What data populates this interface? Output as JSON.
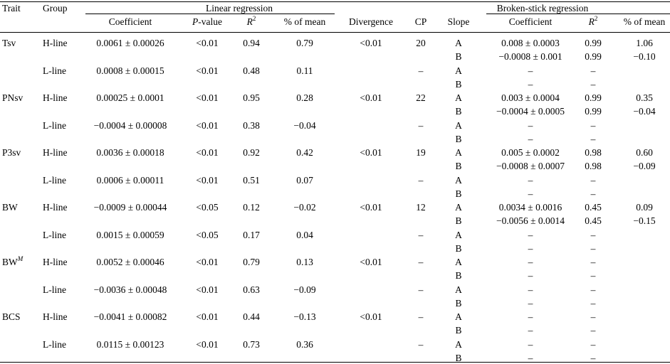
{
  "headers": {
    "trait": "Trait",
    "group": "Group",
    "linear_regression": "Linear regression",
    "broken_stick_regression": "Broken-stick regression",
    "coefficient": "Coefficient",
    "p_value_italic": "P",
    "p_value_rest": "-value",
    "r_letter": "R",
    "r_exp": "2",
    "pct_of_mean": "% of mean",
    "divergence": "Divergence",
    "cp": "CP",
    "slope": "Slope",
    "bs_coefficient": "Coefficient",
    "bs_r_letter": "R",
    "bs_r_exp": "2",
    "bs_pct_of_mean": "% of mean"
  },
  "rows": [
    {
      "trait": "Tsv",
      "group": "H-line",
      "coef": "0.0061 ± 0.00026",
      "p": "<0.01",
      "r2": "0.94",
      "pct": "0.79",
      "div": "<0.01",
      "cp": "20",
      "slopes": [
        {
          "s": "A",
          "coef": "0.008 ± 0.0003",
          "r2": "0.99",
          "pct": "1.06"
        },
        {
          "s": "B",
          "coef": "−0.0008 ± 0.001",
          "r2": "0.99",
          "pct": "−0.10"
        }
      ]
    },
    {
      "trait": "",
      "group": "L-line",
      "coef": "0.0008 ± 0.00015",
      "p": "<0.01",
      "r2": "0.48",
      "pct": "0.11",
      "div": "",
      "cp": "–",
      "slopes": [
        {
          "s": "A",
          "coef": "–",
          "r2": "–",
          "pct": ""
        },
        {
          "s": "B",
          "coef": "–",
          "r2": "–",
          "pct": ""
        }
      ]
    },
    {
      "trait": "PNsv",
      "group": "H-line",
      "coef": "0.00025 ± 0.0001",
      "p": "<0.01",
      "r2": "0.95",
      "pct": "0.28",
      "div": "<0.01",
      "cp": "22",
      "slopes": [
        {
          "s": "A",
          "coef": "0.003 ± 0.0004",
          "r2": "0.99",
          "pct": "0.35"
        },
        {
          "s": "B",
          "coef": "−0.0004 ± 0.0005",
          "r2": "0.99",
          "pct": "−0.04"
        }
      ]
    },
    {
      "trait": "",
      "group": "L-line",
      "coef": "−0.0004 ± 0.00008",
      "p": "<0.01",
      "r2": "0.38",
      "pct": "−0.04",
      "div": "",
      "cp": "–",
      "slopes": [
        {
          "s": "A",
          "coef": "–",
          "r2": "–",
          "pct": ""
        },
        {
          "s": "B",
          "coef": "–",
          "r2": "–",
          "pct": ""
        }
      ]
    },
    {
      "trait": "P3sv",
      "group": "H-line",
      "coef": "0.0036 ± 0.00018",
      "p": "<0.01",
      "r2": "0.92",
      "pct": "0.42",
      "div": "<0.01",
      "cp": "19",
      "slopes": [
        {
          "s": "A",
          "coef": "0.005 ± 0.0002",
          "r2": "0.98",
          "pct": "0.60"
        },
        {
          "s": "B",
          "coef": "−0.0008 ± 0.0007",
          "r2": "0.98",
          "pct": "−0.09"
        }
      ]
    },
    {
      "trait": "",
      "group": "L-line",
      "coef": "0.0006 ± 0.00011",
      "p": "<0.01",
      "r2": "0.51",
      "pct": "0.07",
      "div": "",
      "cp": "–",
      "slopes": [
        {
          "s": "A",
          "coef": "–",
          "r2": "–",
          "pct": ""
        },
        {
          "s": "B",
          "coef": "–",
          "r2": "–",
          "pct": ""
        }
      ]
    },
    {
      "trait": "BW",
      "group": "H-line",
      "coef": "−0.0009 ± 0.00044",
      "p": "<0.05",
      "r2": "0.12",
      "pct": "−0.02",
      "div": "<0.01",
      "cp": "12",
      "slopes": [
        {
          "s": "A",
          "coef": "0.0034 ± 0.0016",
          "r2": "0.45",
          "pct": "0.09"
        },
        {
          "s": "B",
          "coef": "−0.0056 ± 0.0014",
          "r2": "0.45",
          "pct": "−0.15"
        }
      ]
    },
    {
      "trait": "",
      "group": "L-line",
      "coef": "0.0015 ± 0.00059",
      "p": "<0.05",
      "r2": "0.17",
      "pct": "0.04",
      "div": "",
      "cp": "–",
      "slopes": [
        {
          "s": "A",
          "coef": "–",
          "r2": "–",
          "pct": ""
        },
        {
          "s": "B",
          "coef": "–",
          "r2": "–",
          "pct": ""
        }
      ]
    },
    {
      "trait": "BW",
      "trait_sup": "M",
      "group": "H-line",
      "coef": "0.0052 ± 0.00046",
      "p": "<0.01",
      "r2": "0.79",
      "pct": "0.13",
      "div": "<0.01",
      "cp": "–",
      "slopes": [
        {
          "s": "A",
          "coef": "–",
          "r2": "–",
          "pct": ""
        },
        {
          "s": "B",
          "coef": "–",
          "r2": "–",
          "pct": ""
        }
      ]
    },
    {
      "trait": "",
      "group": "L-line",
      "coef": "−0.0036 ± 0.00048",
      "p": "<0.01",
      "r2": "0.63",
      "pct": "−0.09",
      "div": "",
      "cp": "–",
      "slopes": [
        {
          "s": "A",
          "coef": "–",
          "r2": "–",
          "pct": ""
        },
        {
          "s": "B",
          "coef": "–",
          "r2": "–",
          "pct": ""
        }
      ]
    },
    {
      "trait": "BCS",
      "group": "H-line",
      "coef": "−0.0041 ± 0.00082",
      "p": "<0.01",
      "r2": "0.44",
      "pct": "−0.13",
      "div": "<0.01",
      "cp": "–",
      "slopes": [
        {
          "s": "A",
          "coef": "–",
          "r2": "–",
          "pct": ""
        },
        {
          "s": "B",
          "coef": "–",
          "r2": "–",
          "pct": ""
        }
      ]
    },
    {
      "trait": "",
      "group": "L-line",
      "coef": "0.0115 ± 0.00123",
      "p": "<0.01",
      "r2": "0.73",
      "pct": "0.36",
      "div": "",
      "cp": "–",
      "slopes": [
        {
          "s": "A",
          "coef": "–",
          "r2": "–",
          "pct": ""
        },
        {
          "s": "B",
          "coef": "–",
          "r2": "–",
          "pct": ""
        }
      ]
    }
  ]
}
